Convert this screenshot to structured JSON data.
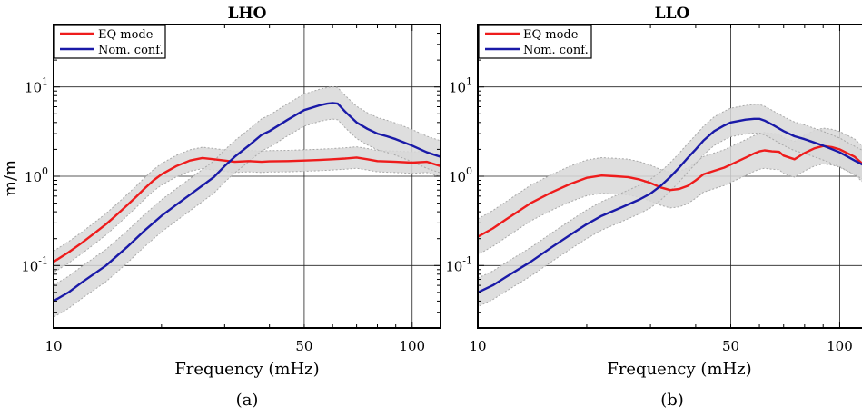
{
  "chart_data": [
    {
      "type": "line",
      "title": "LHO",
      "caption": "(a)",
      "xlabel": "Frequency (mHz)",
      "ylabel": "m/m",
      "xscale": "log",
      "yscale": "log",
      "xlim": [
        10,
        120
      ],
      "ylim": [
        0.02,
        50
      ],
      "grid": "major",
      "legend": "top-left",
      "xticks": [
        {
          "value": 10,
          "label": "10"
        },
        {
          "value": 50,
          "label": "50"
        },
        {
          "value": 100,
          "label": "100"
        }
      ],
      "yticks": [
        {
          "value": 0.1,
          "base": "10",
          "exp": "-1"
        },
        {
          "value": 1,
          "base": "10",
          "exp": "0"
        },
        {
          "value": 10,
          "base": "10",
          "exp": "1"
        }
      ],
      "series": [
        {
          "name": "EQ mode",
          "color": "#ee1c1c",
          "band": 0.12,
          "x": [
            10,
            11,
            12,
            13,
            14,
            15,
            16,
            17,
            18,
            19,
            20,
            22,
            24,
            26,
            28,
            30,
            32,
            35,
            38,
            40,
            45,
            50,
            55,
            60,
            65,
            70,
            75,
            80,
            90,
            100,
            110,
            120
          ],
          "y": [
            0.11,
            0.14,
            0.18,
            0.23,
            0.29,
            0.37,
            0.47,
            0.59,
            0.74,
            0.9,
            1.05,
            1.3,
            1.5,
            1.6,
            1.55,
            1.5,
            1.45,
            1.48,
            1.45,
            1.47,
            1.48,
            1.5,
            1.52,
            1.55,
            1.58,
            1.62,
            1.55,
            1.48,
            1.45,
            1.42,
            1.45,
            1.3
          ]
        },
        {
          "name": "Nom. conf.",
          "color": "#1a1aa8",
          "band": 0.18,
          "x": [
            10,
            11,
            12,
            14,
            16,
            18,
            20,
            22,
            25,
            28,
            30,
            32,
            35,
            38,
            40,
            45,
            50,
            55,
            58,
            60,
            62,
            65,
            70,
            75,
            80,
            85,
            90,
            100,
            110,
            120
          ],
          "y": [
            0.04,
            0.05,
            0.065,
            0.1,
            0.16,
            0.25,
            0.36,
            0.48,
            0.7,
            0.98,
            1.3,
            1.65,
            2.2,
            2.9,
            3.2,
            4.3,
            5.5,
            6.2,
            6.5,
            6.6,
            6.5,
            5.3,
            4.0,
            3.4,
            3.0,
            2.8,
            2.6,
            2.2,
            1.85,
            1.65
          ]
        }
      ]
    },
    {
      "type": "line",
      "title": "LLO",
      "caption": "(b)",
      "xlabel": "Frequency (mHz)",
      "ylabel": "",
      "xscale": "log",
      "yscale": "log",
      "xlim": [
        10,
        120
      ],
      "ylim": [
        0.02,
        50
      ],
      "grid": "major",
      "legend": "top-left",
      "xticks": [
        {
          "value": 10,
          "label": "10"
        },
        {
          "value": 50,
          "label": "50"
        },
        {
          "value": 100,
          "label": "100"
        }
      ],
      "yticks": [
        {
          "value": 0.1,
          "base": "10",
          "exp": "-1"
        },
        {
          "value": 1,
          "base": "10",
          "exp": "0"
        },
        {
          "value": 10,
          "base": "10",
          "exp": "1"
        }
      ],
      "series": [
        {
          "name": "EQ mode",
          "color": "#ee1c1c",
          "band": 0.2,
          "x": [
            10,
            11,
            12,
            13,
            14,
            16,
            18,
            20,
            22,
            24,
            26,
            28,
            30,
            32,
            34,
            36,
            38,
            40,
            42,
            45,
            48,
            50,
            55,
            58,
            60,
            62,
            65,
            68,
            70,
            75,
            80,
            85,
            90,
            95,
            100,
            110,
            120
          ],
          "y": [
            0.21,
            0.26,
            0.33,
            0.41,
            0.5,
            0.66,
            0.82,
            0.96,
            1.02,
            1.0,
            0.98,
            0.92,
            0.84,
            0.75,
            0.7,
            0.72,
            0.78,
            0.9,
            1.05,
            1.15,
            1.25,
            1.35,
            1.62,
            1.8,
            1.9,
            1.95,
            1.9,
            1.88,
            1.7,
            1.55,
            1.82,
            2.05,
            2.18,
            2.12,
            2.0,
            1.65,
            1.2
          ]
        },
        {
          "name": "Nom. conf.",
          "color": "#1a1aa8",
          "band": 0.16,
          "x": [
            10,
            11,
            12,
            14,
            16,
            18,
            20,
            22,
            25,
            28,
            30,
            32,
            34,
            36,
            38,
            40,
            42,
            45,
            48,
            50,
            55,
            58,
            60,
            62,
            65,
            70,
            75,
            80,
            90,
            100,
            110,
            120
          ],
          "y": [
            0.05,
            0.06,
            0.075,
            0.11,
            0.16,
            0.22,
            0.29,
            0.36,
            0.45,
            0.55,
            0.64,
            0.78,
            0.98,
            1.25,
            1.6,
            2.0,
            2.5,
            3.2,
            3.7,
            4.0,
            4.3,
            4.4,
            4.4,
            4.2,
            3.8,
            3.2,
            2.8,
            2.6,
            2.2,
            1.85,
            1.5,
            1.25
          ]
        }
      ]
    }
  ]
}
